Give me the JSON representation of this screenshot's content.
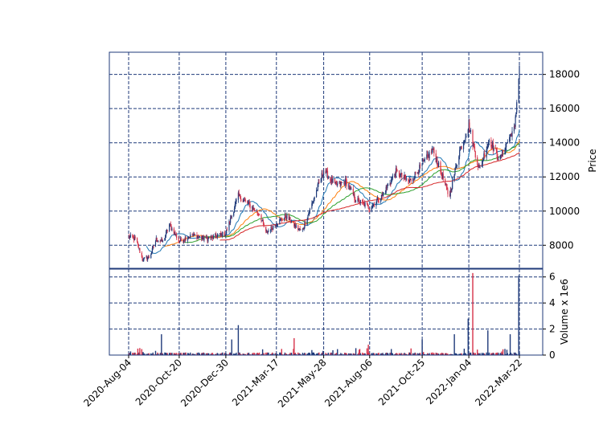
{
  "chart_data": [
    {
      "type": "candlestick",
      "panel": "price",
      "ylabel": "Price",
      "ylim": [
        6650,
        19300
      ],
      "yticks": [
        8000,
        10000,
        12000,
        14000,
        16000,
        18000
      ],
      "ytick_labels": [
        "8000",
        "10000",
        "12000",
        "14000",
        "16000",
        "18000"
      ],
      "grid": true,
      "up_color": "#1f3a7a",
      "down_color": "#d6334a",
      "anchors": [
        {
          "x": "2020-Aug-04",
          "close": 8500
        },
        {
          "x": "2020-Aug-15",
          "close": 8350
        },
        {
          "x": "2020-Aug-25",
          "close": 7150
        },
        {
          "x": "2020-Sep-05",
          "close": 7300
        },
        {
          "x": "2020-Sep-15",
          "close": 8350
        },
        {
          "x": "2020-Sep-25",
          "close": 8200
        },
        {
          "x": "2020-Oct-05",
          "close": 9200
        },
        {
          "x": "2020-Oct-20",
          "close": 8250
        },
        {
          "x": "2020-Nov-10",
          "close": 8600
        },
        {
          "x": "2020-Dec-01",
          "close": 8350
        },
        {
          "x": "2020-Dec-30",
          "close": 8700
        },
        {
          "x": "2021-Jan-18",
          "close": 10900
        },
        {
          "x": "2021-Feb-05",
          "close": 10300
        },
        {
          "x": "2021-Feb-20",
          "close": 9800
        },
        {
          "x": "2021-Mar-01",
          "close": 8700
        },
        {
          "x": "2021-Mar-17",
          "close": 9300
        },
        {
          "x": "2021-Apr-01",
          "close": 9700
        },
        {
          "x": "2021-Apr-15",
          "close": 9100
        },
        {
          "x": "2021-Apr-25",
          "close": 8800
        },
        {
          "x": "2021-May-10",
          "close": 10400
        },
        {
          "x": "2021-May-28",
          "close": 12400
        },
        {
          "x": "2021-Jun-15",
          "close": 11500
        },
        {
          "x": "2021-Jul-01",
          "close": 11700
        },
        {
          "x": "2021-Jul-15",
          "close": 10700
        },
        {
          "x": "2021-Aug-06",
          "close": 10200
        },
        {
          "x": "2021-Aug-25",
          "close": 10900
        },
        {
          "x": "2021-Sep-15",
          "close": 12300
        },
        {
          "x": "2021-Oct-05",
          "close": 11700
        },
        {
          "x": "2021-Oct-25",
          "close": 12700
        },
        {
          "x": "2021-Nov-10",
          "close": 13600
        },
        {
          "x": "2021-Nov-25",
          "close": 12000
        },
        {
          "x": "2021-Dec-05",
          "close": 10800
        },
        {
          "x": "2021-Dec-20",
          "close": 13400
        },
        {
          "x": "2022-Jan-04",
          "close": 15000
        },
        {
          "x": "2022-Jan-20",
          "close": 12400
        },
        {
          "x": "2022-Feb-04",
          "close": 14200
        },
        {
          "x": "2022-Feb-20",
          "close": 13000
        },
        {
          "x": "2022-Mar-10",
          "close": 14600
        },
        {
          "x": "2022-Mar-15",
          "close": 14800
        },
        {
          "x": "2022-Mar-22",
          "close": 18500
        }
      ],
      "moving_averages": [
        {
          "window": 20,
          "color": "#1f77b4"
        },
        {
          "window": 40,
          "color": "#ff7f0e"
        },
        {
          "window": 60,
          "color": "#2ca02c"
        },
        {
          "window": 100,
          "color": "#d62728"
        }
      ]
    },
    {
      "type": "bar",
      "panel": "volume",
      "ylabel": "Volume x 1e6",
      "ylim": [
        0,
        6.6
      ],
      "yticks": [
        0,
        2,
        4,
        6
      ],
      "ytick_labels": [
        "0",
        "2",
        "4",
        "6"
      ],
      "grid": true,
      "spikes": [
        {
          "x": "2020-Sep-25",
          "value": 1.6
        },
        {
          "x": "2021-Jan-10",
          "value": 1.2
        },
        {
          "x": "2021-Jan-18",
          "value": 2.3
        },
        {
          "x": "2021-Apr-15",
          "value": 1.3
        },
        {
          "x": "2021-Aug-06",
          "value": 0.8
        },
        {
          "x": "2021-Oct-25",
          "value": 1.2
        },
        {
          "x": "2021-Dec-15",
          "value": 1.6
        },
        {
          "x": "2022-Jan-04",
          "value": 2.8
        },
        {
          "x": "2022-Jan-12",
          "value": 6.3
        },
        {
          "x": "2022-Feb-04",
          "value": 1.9
        },
        {
          "x": "2022-Mar-10",
          "value": 1.6
        },
        {
          "x": "2022-Mar-22",
          "value": 6.1
        }
      ],
      "x_tick_labels": [
        "2020-Aug-04",
        "2020-Oct-20",
        "2020-Dec-30",
        "2021-Mar-17",
        "2021-May-28",
        "2021-Aug-06",
        "2021-Oct-25",
        "2022-Jan-04",
        "2022-Mar-22"
      ]
    }
  ]
}
